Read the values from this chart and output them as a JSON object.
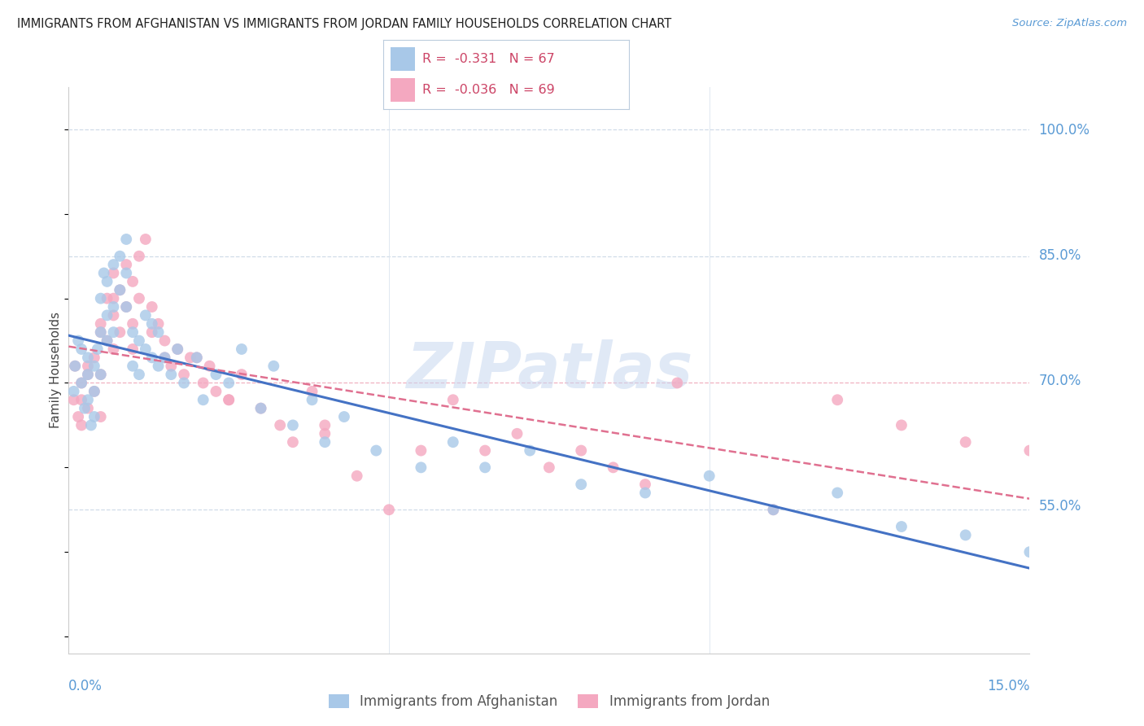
{
  "title": "IMMIGRANTS FROM AFGHANISTAN VS IMMIGRANTS FROM JORDAN FAMILY HOUSEHOLDS CORRELATION CHART",
  "source": "Source: ZipAtlas.com",
  "ylabel": "Family Households",
  "ytick_labels": [
    "100.0%",
    "85.0%",
    "70.0%",
    "55.0%"
  ],
  "ytick_values": [
    1.0,
    0.85,
    0.7,
    0.55
  ],
  "xlim": [
    0.0,
    0.15
  ],
  "ylim": [
    0.38,
    1.05
  ],
  "legend_r_afg": "-0.331",
  "legend_n_afg": "67",
  "legend_r_jor": "-0.036",
  "legend_n_jor": "69",
  "color_afg": "#a8c8e8",
  "color_jor": "#f4a8c0",
  "line_color_afg": "#4472c4",
  "line_color_jor": "#e07090",
  "watermark": "ZIPatlas",
  "afg_x": [
    0.0008,
    0.001,
    0.0015,
    0.002,
    0.002,
    0.0025,
    0.003,
    0.003,
    0.003,
    0.0035,
    0.004,
    0.004,
    0.004,
    0.0045,
    0.005,
    0.005,
    0.005,
    0.0055,
    0.006,
    0.006,
    0.006,
    0.007,
    0.007,
    0.007,
    0.008,
    0.008,
    0.009,
    0.009,
    0.009,
    0.01,
    0.01,
    0.011,
    0.011,
    0.012,
    0.012,
    0.013,
    0.013,
    0.014,
    0.014,
    0.015,
    0.016,
    0.017,
    0.018,
    0.02,
    0.021,
    0.023,
    0.025,
    0.027,
    0.03,
    0.032,
    0.035,
    0.038,
    0.04,
    0.043,
    0.048,
    0.055,
    0.06,
    0.065,
    0.072,
    0.08,
    0.09,
    0.1,
    0.11,
    0.12,
    0.13,
    0.14,
    0.15
  ],
  "afg_y": [
    0.69,
    0.72,
    0.75,
    0.7,
    0.74,
    0.67,
    0.71,
    0.68,
    0.73,
    0.65,
    0.72,
    0.69,
    0.66,
    0.74,
    0.8,
    0.76,
    0.71,
    0.83,
    0.82,
    0.78,
    0.75,
    0.84,
    0.79,
    0.76,
    0.85,
    0.81,
    0.87,
    0.83,
    0.79,
    0.76,
    0.72,
    0.75,
    0.71,
    0.78,
    0.74,
    0.77,
    0.73,
    0.76,
    0.72,
    0.73,
    0.71,
    0.74,
    0.7,
    0.73,
    0.68,
    0.71,
    0.7,
    0.74,
    0.67,
    0.72,
    0.65,
    0.68,
    0.63,
    0.66,
    0.62,
    0.6,
    0.63,
    0.6,
    0.62,
    0.58,
    0.57,
    0.59,
    0.55,
    0.57,
    0.53,
    0.52,
    0.5
  ],
  "jor_x": [
    0.0008,
    0.001,
    0.0015,
    0.002,
    0.002,
    0.003,
    0.003,
    0.004,
    0.004,
    0.005,
    0.005,
    0.005,
    0.006,
    0.006,
    0.007,
    0.007,
    0.007,
    0.008,
    0.008,
    0.009,
    0.009,
    0.01,
    0.01,
    0.011,
    0.011,
    0.012,
    0.013,
    0.013,
    0.014,
    0.015,
    0.016,
    0.017,
    0.018,
    0.019,
    0.02,
    0.021,
    0.022,
    0.023,
    0.025,
    0.027,
    0.03,
    0.033,
    0.035,
    0.038,
    0.04,
    0.045,
    0.05,
    0.055,
    0.06,
    0.065,
    0.07,
    0.075,
    0.08,
    0.09,
    0.095,
    0.11,
    0.12,
    0.13,
    0.14,
    0.15,
    0.085,
    0.04,
    0.025,
    0.015,
    0.01,
    0.007,
    0.005,
    0.003,
    0.002
  ],
  "jor_y": [
    0.68,
    0.72,
    0.66,
    0.7,
    0.65,
    0.72,
    0.67,
    0.73,
    0.69,
    0.76,
    0.71,
    0.66,
    0.8,
    0.75,
    0.83,
    0.78,
    0.74,
    0.81,
    0.76,
    0.84,
    0.79,
    0.82,
    0.77,
    0.85,
    0.8,
    0.87,
    0.79,
    0.76,
    0.77,
    0.75,
    0.72,
    0.74,
    0.71,
    0.73,
    0.73,
    0.7,
    0.72,
    0.69,
    0.68,
    0.71,
    0.67,
    0.65,
    0.63,
    0.69,
    0.65,
    0.59,
    0.55,
    0.62,
    0.68,
    0.62,
    0.64,
    0.6,
    0.62,
    0.58,
    0.7,
    0.55,
    0.68,
    0.65,
    0.63,
    0.62,
    0.6,
    0.64,
    0.68,
    0.73,
    0.74,
    0.8,
    0.77,
    0.71,
    0.68
  ]
}
